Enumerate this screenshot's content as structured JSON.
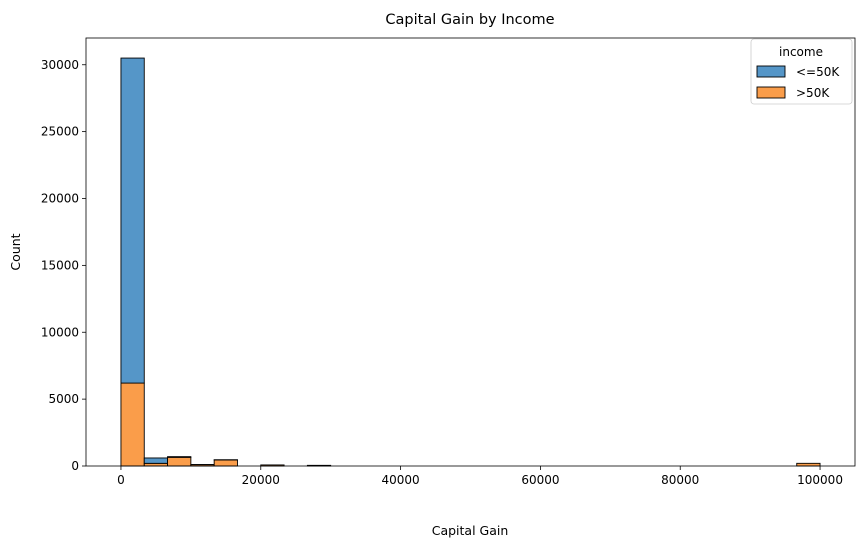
{
  "chart_data": {
    "type": "bar",
    "title": "Capital Gain by Income",
    "xlabel": "Capital Gain",
    "ylabel": "Count",
    "xlim": [
      -4999.95,
      104999.0
    ],
    "ylim": [
      0,
      32000
    ],
    "xticks": [
      0,
      20000,
      40000,
      60000,
      80000,
      100000
    ],
    "xtick_labels": [
      "0",
      "20000",
      "40000",
      "60000",
      "80000",
      "100000"
    ],
    "yticks": [
      0,
      5000,
      10000,
      15000,
      20000,
      25000,
      30000
    ],
    "ytick_labels": [
      "0",
      "5000",
      "10000",
      "15000",
      "20000",
      "25000",
      "30000"
    ],
    "grid": false,
    "stacked": true,
    "legend": {
      "title": "income",
      "placement": "top-right"
    },
    "bin_edges": [
      0,
      3333.3,
      6666.6,
      9999.9,
      13333.2,
      16666.5,
      19999.8,
      23333.1,
      26666.4,
      29999.7,
      33333.0,
      36666.3,
      39999.6,
      43332.9,
      46666.2,
      49999.5,
      53332.8,
      56666.1,
      59999.4,
      63332.7,
      66666.0,
      69999.3,
      73332.6,
      76665.9,
      79999.2,
      83332.5,
      86665.8,
      89999.1,
      93332.4,
      96665.7,
      99999.0
    ],
    "series": [
      {
        "name": "<=50K",
        "color": "#5596c8",
        "values": [
          24300,
          400,
          50,
          10,
          20,
          0,
          0,
          0,
          0,
          0,
          0,
          0,
          0,
          0,
          0,
          0,
          0,
          0,
          0,
          0,
          0,
          0,
          0,
          0,
          0,
          0,
          0,
          0,
          0,
          0
        ]
      },
      {
        "name": ">50K",
        "color": "#fa9d4a",
        "values": [
          6200,
          200,
          650,
          100,
          450,
          0,
          80,
          0,
          50,
          0,
          0,
          0,
          0,
          0,
          0,
          0,
          0,
          0,
          0,
          0,
          0,
          0,
          0,
          0,
          0,
          0,
          0,
          0,
          0,
          200
        ]
      }
    ]
  }
}
